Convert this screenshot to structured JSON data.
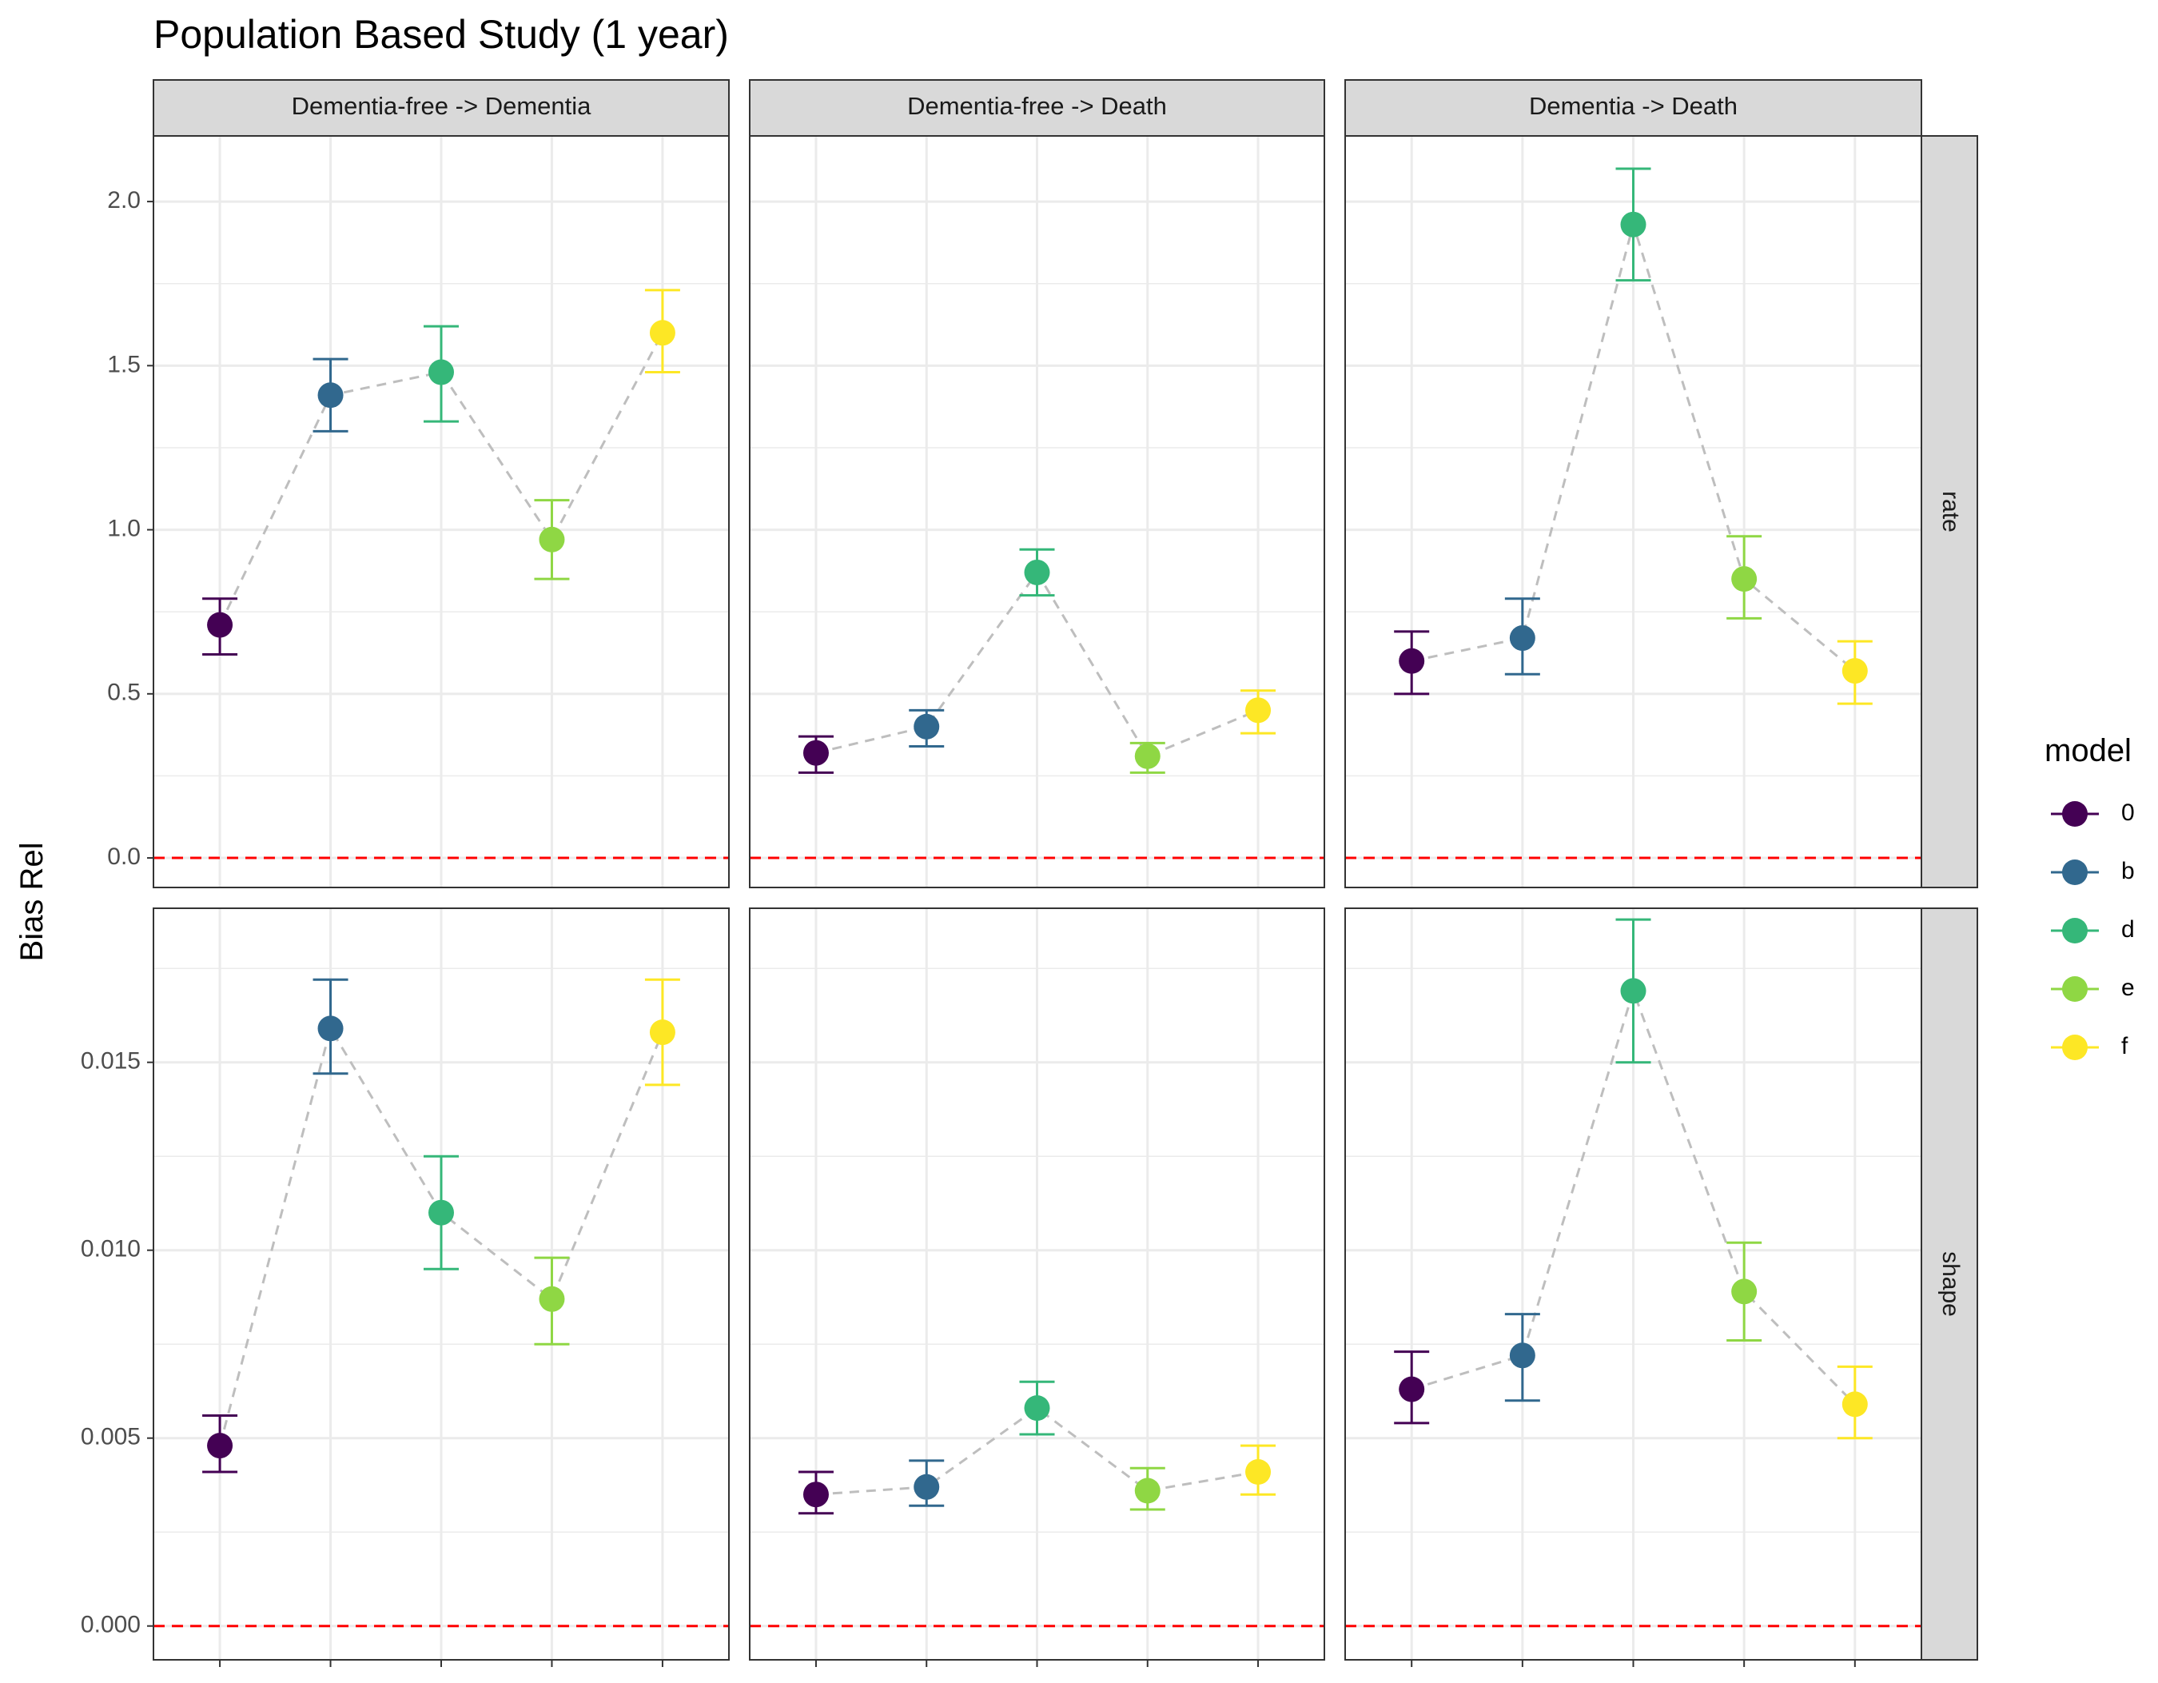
{
  "chart_data": {
    "type": "scatter",
    "title": "Population Based Study (1 year)",
    "ylabel": "Bias Rel",
    "xlabel": "",
    "legend": {
      "title": "model",
      "placement": "right"
    },
    "models": [
      {
        "name": "0",
        "color": "#440154"
      },
      {
        "name": "b",
        "color": "#31688E"
      },
      {
        "name": "d",
        "color": "#35B779"
      },
      {
        "name": "e",
        "color": "#8FD744"
      },
      {
        "name": "f",
        "color": "#FDE725"
      }
    ],
    "columns": [
      "Dementia-free -> Dementia",
      "Dementia-free -> Death",
      "Dementia -> Death"
    ],
    "rows": [
      {
        "label": "rate",
        "ylim": [
          -0.09,
          2.2
        ],
        "ticks": [
          0.0,
          0.5,
          1.0,
          1.5,
          2.0
        ],
        "tick_labels": [
          "0.0",
          "0.5",
          "1.0",
          "1.5",
          "2.0"
        ],
        "panels": [
          {
            "values": [
              0.71,
              1.41,
              1.48,
              0.97,
              1.6
            ],
            "lower": [
              0.62,
              1.3,
              1.33,
              0.85,
              1.48
            ],
            "upper": [
              0.79,
              1.52,
              1.62,
              1.09,
              1.73
            ]
          },
          {
            "values": [
              0.32,
              0.4,
              0.87,
              0.31,
              0.45
            ],
            "lower": [
              0.26,
              0.34,
              0.8,
              0.26,
              0.38
            ],
            "upper": [
              0.37,
              0.45,
              0.94,
              0.35,
              0.51
            ]
          },
          {
            "values": [
              0.6,
              0.67,
              1.93,
              0.85,
              0.57
            ],
            "lower": [
              0.5,
              0.56,
              1.76,
              0.73,
              0.47
            ],
            "upper": [
              0.69,
              0.79,
              2.1,
              0.98,
              0.66
            ]
          }
        ]
      },
      {
        "label": "shape",
        "ylim": [
          -0.0009,
          0.0191
        ],
        "ticks": [
          0.0,
          0.005,
          0.01,
          0.015
        ],
        "tick_labels": [
          "0.000",
          "0.005",
          "0.010",
          "0.015"
        ],
        "panels": [
          {
            "values": [
              0.0048,
              0.0159,
              0.011,
              0.0087,
              0.0158
            ],
            "lower": [
              0.0041,
              0.0147,
              0.0095,
              0.0075,
              0.0144
            ],
            "upper": [
              0.0056,
              0.0172,
              0.0125,
              0.0098,
              0.0172
            ]
          },
          {
            "values": [
              0.0035,
              0.0037,
              0.0058,
              0.0036,
              0.0041
            ],
            "lower": [
              0.003,
              0.0032,
              0.0051,
              0.0031,
              0.0035
            ],
            "upper": [
              0.0041,
              0.0044,
              0.0065,
              0.0042,
              0.0048
            ]
          },
          {
            "values": [
              0.0063,
              0.0072,
              0.0169,
              0.0089,
              0.0059
            ],
            "lower": [
              0.0054,
              0.006,
              0.015,
              0.0076,
              0.005
            ],
            "upper": [
              0.0073,
              0.0083,
              0.0188,
              0.0102,
              0.0069
            ]
          }
        ]
      }
    ],
    "reference_line": {
      "y": 0,
      "color": "#FF0000"
    },
    "connector_color": "#BEBEBE",
    "strip_fill": "#D9D9D9",
    "grid": true
  }
}
